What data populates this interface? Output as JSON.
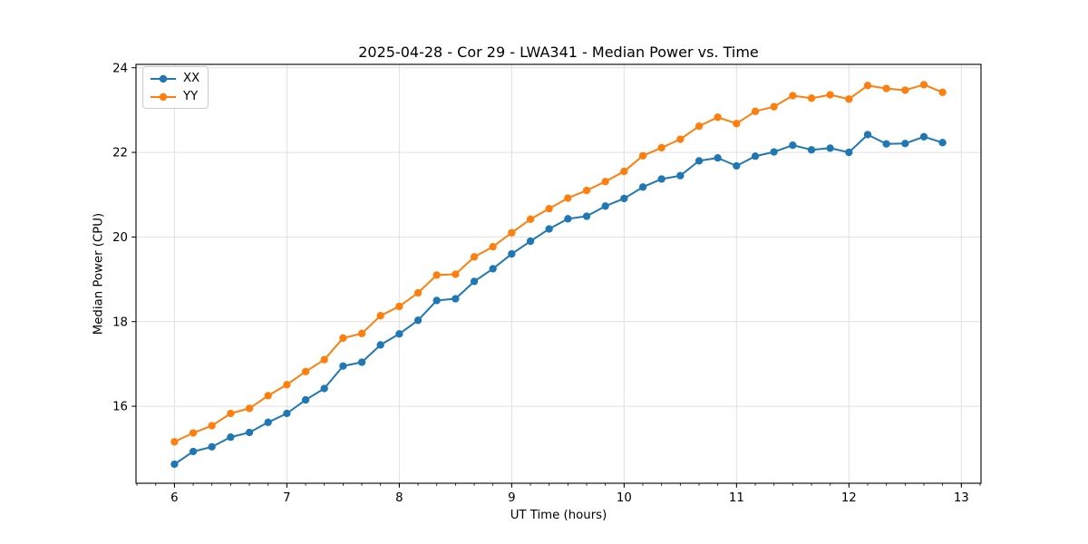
{
  "chart_data": {
    "type": "line",
    "title": "2025-04-28 - Cor 29 - LWA341 - Median Power vs. Time",
    "xlabel": "UT Time (hours)",
    "ylabel": "Median Power (CPU)",
    "xlim": [
      5.658,
      13.175
    ],
    "ylim": [
      14.18,
      24.08
    ],
    "xticks": [
      6,
      7,
      8,
      9,
      10,
      11,
      12,
      13
    ],
    "xtick_labels": [
      "6",
      "7",
      "8",
      "9",
      "10",
      "11",
      "12",
      "13"
    ],
    "yticks": [
      16,
      18,
      20,
      22,
      24
    ],
    "ytick_labels": [
      "16",
      "18",
      "20",
      "22",
      "24"
    ],
    "minor_x_step": 0.166667,
    "grid": true,
    "grid_color": "#e0e0e0",
    "spine_color": "#000000",
    "text_color": "#000000",
    "legend": {
      "position": "upper-left",
      "entries": [
        "XX",
        "YY"
      ]
    },
    "x": [
      6.0,
      6.167,
      6.333,
      6.5,
      6.667,
      6.833,
      7.0,
      7.167,
      7.333,
      7.5,
      7.667,
      7.833,
      8.0,
      8.167,
      8.333,
      8.5,
      8.667,
      8.833,
      9.0,
      9.167,
      9.333,
      9.5,
      9.667,
      9.833,
      10.0,
      10.167,
      10.333,
      10.5,
      10.667,
      10.833,
      11.0,
      11.167,
      11.333,
      11.5,
      11.667,
      11.833,
      12.0,
      12.167,
      12.333,
      12.5,
      12.667,
      12.833
    ],
    "series": [
      {
        "name": "XX",
        "color": "#1f77b4",
        "values": [
          14.63,
          14.93,
          15.04,
          15.27,
          15.38,
          15.62,
          15.83,
          16.15,
          16.42,
          16.95,
          17.04,
          17.45,
          17.71,
          18.03,
          18.5,
          18.54,
          18.95,
          19.25,
          19.6,
          19.9,
          20.19,
          20.43,
          20.49,
          20.73,
          20.91,
          21.18,
          21.37,
          21.45,
          21.8,
          21.87,
          21.68,
          21.91,
          22.01,
          22.17,
          22.06,
          22.1,
          22.0,
          22.42,
          22.2,
          22.21,
          22.37,
          22.23
        ]
      },
      {
        "name": "YY",
        "color": "#ff7f0e",
        "values": [
          15.16,
          15.37,
          15.54,
          15.83,
          15.95,
          16.25,
          16.51,
          16.82,
          17.1,
          17.61,
          17.72,
          18.14,
          18.36,
          18.68,
          19.1,
          19.12,
          19.53,
          19.77,
          20.1,
          20.42,
          20.67,
          20.92,
          21.1,
          21.31,
          21.55,
          21.92,
          22.11,
          22.31,
          22.62,
          22.83,
          22.68,
          22.97,
          23.08,
          23.34,
          23.28,
          23.36,
          23.26,
          23.58,
          23.51,
          23.47,
          23.6,
          23.42
        ]
      }
    ]
  }
}
